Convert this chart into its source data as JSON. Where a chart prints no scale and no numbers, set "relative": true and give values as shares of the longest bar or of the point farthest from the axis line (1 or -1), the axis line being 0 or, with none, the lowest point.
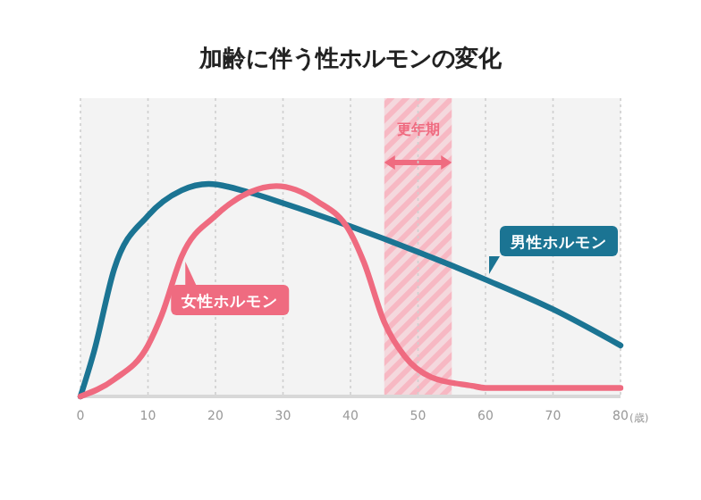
{
  "chart_data": {
    "type": "line",
    "title": "加齢に伴う性ホルモンの変化",
    "xlabel": "(歳)",
    "relative": true,
    "xlim": [
      0,
      80
    ],
    "xticks": [
      0,
      10,
      20,
      30,
      40,
      50,
      60,
      70,
      80
    ],
    "grid": "x",
    "legend": "top left",
    "series": [
      {
        "name": "男性ホルモン",
        "color": "#1b7493",
        "x": [
          0,
          2,
          5,
          10,
          15,
          19,
          25,
          30,
          40,
          50,
          60,
          70,
          80
        ],
        "values": [
          0,
          0.21,
          0.6,
          0.85,
          0.97,
          1,
          0.96,
          0.91,
          0.8,
          0.68,
          0.55,
          0.41,
          0.24
        ]
      },
      {
        "name": "女性ホルモン",
        "color": "#ef6b80",
        "x": [
          0,
          5,
          10,
          12,
          15,
          20,
          25,
          29,
          35,
          40,
          42,
          45,
          48,
          52,
          58,
          60,
          80
        ],
        "values": [
          0,
          0.08,
          0.24,
          0.38,
          0.66,
          0.85,
          0.96,
          0.99,
          0.92,
          0.77,
          0.63,
          0.35,
          0.19,
          0.09,
          0.05,
          0.04,
          0.04
        ]
      }
    ],
    "bands": [
      {
        "axis": "x",
        "from": 45,
        "to": 55,
        "label": "更年期",
        "color": "#f7b8c3"
      }
    ]
  }
}
